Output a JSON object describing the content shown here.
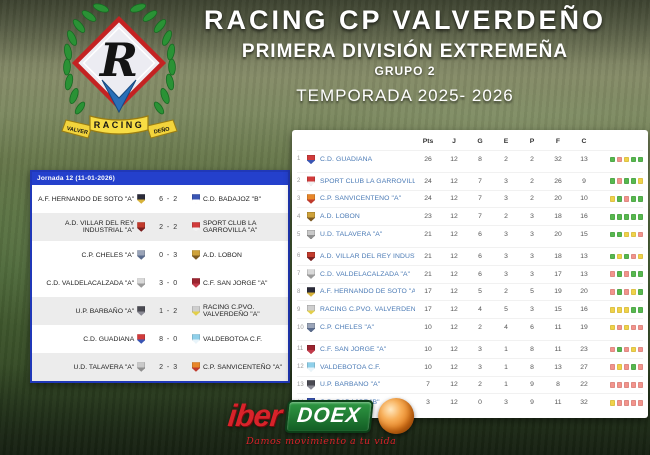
{
  "header": {
    "title": "RACING CP VALVERDEÑO",
    "subtitle": "PRIMERA DIVISIÓN EXTREMEÑA",
    "group": "GRUPO 2",
    "season": "TEMPORADA 2025- 2026"
  },
  "logo": {
    "monogram": "R",
    "ribbon": "RACING",
    "ribbon_left": "VALVER",
    "ribbon_right": "DEÑO"
  },
  "teams": {
    "guadiana": {
      "name": "C.D. GUADIANA",
      "badge": [
        "#d23b3b",
        "#3a55b4"
      ]
    },
    "garrovilla": {
      "name": "SPORT CLUB LA GARROVILLA \"A\"",
      "badge": [
        "#d23b3b",
        "#f2f2f2"
      ]
    },
    "sanvicenteno": {
      "name": "C.P. SANVICENTEÑO \"A\"",
      "badge": [
        "#e8872a",
        "#c03b2d"
      ]
    },
    "lobon": {
      "name": "A.D. LOBON",
      "badge": [
        "#cfa23a",
        "#7d5a22"
      ]
    },
    "talavera": {
      "name": "U.D. TALAVERA \"A\"",
      "badge": [
        "#c9c9c9",
        "#8f8f8f"
      ]
    },
    "villar": {
      "name": "A.D. VILLAR DEL REY INDUSTRIAL \"A\"",
      "badge": [
        "#c23b2d",
        "#7c1f1f"
      ]
    },
    "valdelacalzada": {
      "name": "C.D. VALDELACALZADA \"A\"",
      "badge": [
        "#d9d9d9",
        "#9a9a9a"
      ]
    },
    "hernando": {
      "name": "A.F. HERNANDO DE SOTO \"A\"",
      "badge": [
        "#2b2b3a",
        "#d8b33a"
      ]
    },
    "racing": {
      "name": "RACING C.PVO. VALVERDEÑO \"A\"",
      "badge": [
        "#cfcfcf",
        "#e3cf4a"
      ]
    },
    "cheles": {
      "name": "C.P. CHELES \"A\"",
      "badge": [
        "#9aa4b8",
        "#5a6b8c"
      ]
    },
    "sanjorge": {
      "name": "C.F. SAN JORGE \"A\"",
      "badge": [
        "#9c2430",
        "#c23b4a"
      ]
    },
    "valdebotoa": {
      "name": "VALDEBOTOA C.F.",
      "badge": [
        "#8fd0ea",
        "#e8f4fa"
      ]
    },
    "barbano": {
      "name": "U.P. BARBAÑO \"A\"",
      "badge": [
        "#4a4a52",
        "#8a8a94"
      ]
    },
    "badajoz": {
      "name": "C.D. BADAJOZ \"B\"",
      "badge": [
        "#3a55b4",
        "#ffffff"
      ]
    }
  },
  "results": {
    "title": "Jornada 12 (11-01-2026)",
    "matches": [
      {
        "home": "hernando",
        "score": "6 - 2",
        "away": "badajoz"
      },
      {
        "home": "villar",
        "score": "2 - 2",
        "away": "garrovilla"
      },
      {
        "home": "cheles",
        "score": "0 - 3",
        "away": "lobon"
      },
      {
        "home": "valdelacalzada",
        "score": "3 - 0",
        "away": "sanjorge"
      },
      {
        "home": "barbano",
        "score": "1 - 2",
        "away": "racing"
      },
      {
        "home": "guadiana",
        "score": "8 - 0",
        "away": "valdebotoa"
      },
      {
        "home": "talavera",
        "score": "2 - 3",
        "away": "sanvicenteno"
      }
    ]
  },
  "standings": {
    "columns": [
      "Pts",
      "J",
      "G",
      "E",
      "P",
      "F",
      "C"
    ],
    "group_breaks": [
      1,
      5,
      10
    ],
    "rows": [
      {
        "pos": 1,
        "team": "guadiana",
        "pts": 26,
        "j": 12,
        "g": 8,
        "e": 2,
        "p": 2,
        "f": 32,
        "c": 13,
        "form": [
          "W",
          "L",
          "D",
          "W",
          "W"
        ]
      },
      {
        "pos": 2,
        "team": "garrovilla",
        "pts": 24,
        "j": 12,
        "g": 7,
        "e": 3,
        "p": 2,
        "f": 26,
        "c": 9,
        "form": [
          "W",
          "L",
          "W",
          "W",
          "D"
        ]
      },
      {
        "pos": 3,
        "team": "sanvicenteno",
        "pts": 24,
        "j": 12,
        "g": 7,
        "e": 3,
        "p": 2,
        "f": 20,
        "c": 10,
        "form": [
          "D",
          "W",
          "L",
          "W",
          "W"
        ]
      },
      {
        "pos": 4,
        "team": "lobon",
        "pts": 23,
        "j": 12,
        "g": 7,
        "e": 2,
        "p": 3,
        "f": 18,
        "c": 16,
        "form": [
          "W",
          "W",
          "W",
          "W",
          "W"
        ]
      },
      {
        "pos": 5,
        "team": "talavera",
        "pts": 21,
        "j": 12,
        "g": 6,
        "e": 3,
        "p": 3,
        "f": 20,
        "c": 15,
        "form": [
          "W",
          "W",
          "D",
          "D",
          "L"
        ]
      },
      {
        "pos": 6,
        "team": "villar",
        "pts": 21,
        "j": 12,
        "g": 6,
        "e": 3,
        "p": 3,
        "f": 18,
        "c": 13,
        "form": [
          "W",
          "D",
          "W",
          "L",
          "D"
        ]
      },
      {
        "pos": 7,
        "team": "valdelacalzada",
        "pts": 21,
        "j": 12,
        "g": 6,
        "e": 3,
        "p": 3,
        "f": 17,
        "c": 13,
        "form": [
          "L",
          "W",
          "L",
          "W",
          "W"
        ]
      },
      {
        "pos": 8,
        "team": "hernando",
        "pts": 17,
        "j": 12,
        "g": 5,
        "e": 2,
        "p": 5,
        "f": 19,
        "c": 20,
        "form": [
          "L",
          "W",
          "L",
          "D",
          "W"
        ]
      },
      {
        "pos": 9,
        "team": "racing",
        "pts": 17,
        "j": 12,
        "g": 4,
        "e": 5,
        "p": 3,
        "f": 15,
        "c": 16,
        "form": [
          "D",
          "D",
          "D",
          "W",
          "W"
        ]
      },
      {
        "pos": 10,
        "team": "cheles",
        "pts": 10,
        "j": 12,
        "g": 2,
        "e": 4,
        "p": 6,
        "f": 11,
        "c": 19,
        "form": [
          "D",
          "L",
          "D",
          "L",
          "L"
        ]
      },
      {
        "pos": 11,
        "team": "sanjorge",
        "pts": 10,
        "j": 12,
        "g": 3,
        "e": 1,
        "p": 8,
        "f": 11,
        "c": 23,
        "form": [
          "L",
          "W",
          "L",
          "D",
          "L"
        ]
      },
      {
        "pos": 12,
        "team": "valdebotoa",
        "pts": 10,
        "j": 12,
        "g": 3,
        "e": 1,
        "p": 8,
        "f": 13,
        "c": 27,
        "form": [
          "L",
          "D",
          "L",
          "W",
          "L"
        ]
      },
      {
        "pos": 13,
        "team": "barbano",
        "pts": 7,
        "j": 12,
        "g": 2,
        "e": 1,
        "p": 9,
        "f": 8,
        "c": 22,
        "form": [
          "L",
          "L",
          "L",
          "L",
          "L"
        ]
      },
      {
        "pos": 14,
        "team": "badajoz",
        "pts": 3,
        "j": 12,
        "g": 0,
        "e": 3,
        "p": 9,
        "f": 11,
        "c": 32,
        "form": [
          "D",
          "L",
          "L",
          "L",
          "L"
        ]
      }
    ]
  },
  "sponsor": {
    "part1": "iber",
    "part2": "DOEX",
    "tagline": "Damos movimiento a tu vida"
  },
  "colors": {
    "form": {
      "W": "#57b84f",
      "D": "#f0d24a",
      "L": "#f2948c"
    },
    "accent_blue": "#2440cc",
    "team_link": "#4a7ab5"
  }
}
